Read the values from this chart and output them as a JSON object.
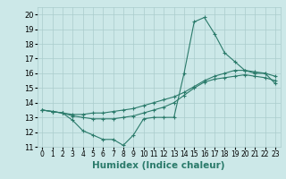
{
  "xlabel": "Humidex (Indice chaleur)",
  "ylabel": "",
  "xlim": [
    -0.5,
    23.5
  ],
  "ylim": [
    11,
    20.5
  ],
  "yticks": [
    11,
    12,
    13,
    14,
    15,
    16,
    17,
    18,
    19,
    20
  ],
  "xticks": [
    0,
    1,
    2,
    3,
    4,
    5,
    6,
    7,
    8,
    9,
    10,
    11,
    12,
    13,
    14,
    15,
    16,
    17,
    18,
    19,
    20,
    21,
    22,
    23
  ],
  "bg_color": "#cce8e8",
  "grid_color": "#aacccc",
  "line_color": "#2a7a6a",
  "series": [
    {
      "x": [
        0,
        1,
        2,
        3,
        4,
        5,
        6,
        7,
        8,
        9,
        10,
        11,
        12,
        13,
        14,
        15,
        16,
        17,
        18,
        19,
        20,
        21,
        22,
        23
      ],
      "y": [
        13.5,
        13.4,
        13.3,
        12.8,
        12.1,
        11.8,
        11.5,
        11.5,
        11.1,
        11.8,
        12.9,
        13.0,
        13.0,
        13.0,
        16.0,
        19.5,
        19.8,
        18.7,
        17.4,
        16.8,
        16.2,
        16.0,
        16.0,
        15.3
      ]
    },
    {
      "x": [
        0,
        1,
        2,
        3,
        4,
        5,
        6,
        7,
        8,
        9,
        10,
        11,
        12,
        13,
        14,
        15,
        16,
        17,
        18,
        19,
        20,
        21,
        22,
        23
      ],
      "y": [
        13.5,
        13.4,
        13.3,
        13.2,
        13.2,
        13.3,
        13.3,
        13.4,
        13.5,
        13.6,
        13.8,
        14.0,
        14.2,
        14.4,
        14.7,
        15.1,
        15.5,
        15.8,
        16.0,
        16.2,
        16.2,
        16.1,
        16.0,
        15.8
      ]
    },
    {
      "x": [
        0,
        1,
        2,
        3,
        4,
        5,
        6,
        7,
        8,
        9,
        10,
        11,
        12,
        13,
        14,
        15,
        16,
        17,
        18,
        19,
        20,
        21,
        22,
        23
      ],
      "y": [
        13.5,
        13.4,
        13.3,
        13.1,
        13.0,
        12.9,
        12.9,
        12.9,
        13.0,
        13.1,
        13.3,
        13.5,
        13.7,
        14.0,
        14.5,
        15.0,
        15.4,
        15.6,
        15.7,
        15.8,
        15.9,
        15.8,
        15.7,
        15.5
      ]
    }
  ],
  "xlabel_fontsize": 7.5,
  "tick_fontsize": 5.5,
  "ytick_fontsize": 6.0
}
